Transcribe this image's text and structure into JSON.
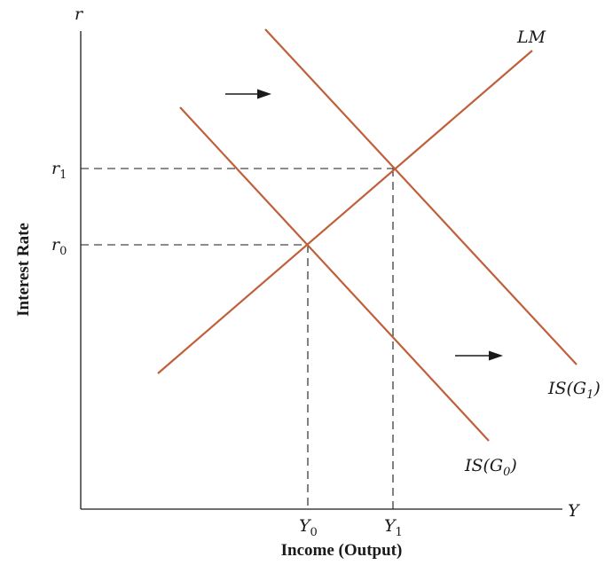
{
  "axes": {
    "y_symbol": "r",
    "x_symbol": "Y",
    "y_title": "Interest Rate",
    "x_title": "Income (Output)"
  },
  "ticks": {
    "r1": {
      "base": "r",
      "sub": "1"
    },
    "r0": {
      "base": "r",
      "sub": "0"
    },
    "y0": {
      "base": "Y",
      "sub": "0"
    },
    "y1": {
      "base": "Y",
      "sub": "1"
    }
  },
  "curves": {
    "lm": "LM",
    "is_g0": {
      "prefix": "IS(G",
      "sub": "0",
      "suffix": ")"
    },
    "is_g1": {
      "prefix": "IS(G",
      "sub": "1",
      "suffix": ")"
    }
  },
  "colors": {
    "curve": "#c0603b",
    "ink": "#1a1a1a"
  }
}
